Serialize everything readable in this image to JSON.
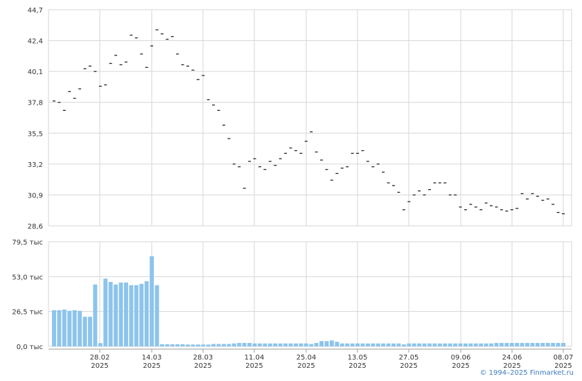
{
  "chart_data": [
    {
      "type": "scatter",
      "marker": "dash",
      "title": "",
      "xlabel": "",
      "ylabel": "",
      "ylim": [
        28.6,
        44.7
      ],
      "y_ticks": [
        "44,7",
        "42,4",
        "40,1",
        "37,8",
        "35,5",
        "33,2",
        "30,9",
        "28,6"
      ],
      "grid": true,
      "values": [
        37.9,
        37.8,
        37.2,
        38.6,
        38.1,
        38.8,
        40.3,
        40.5,
        40.1,
        39.0,
        39.1,
        40.7,
        41.3,
        40.6,
        40.8,
        42.8,
        42.6,
        41.4,
        40.4,
        42.0,
        43.2,
        42.9,
        42.5,
        42.7,
        41.4,
        40.6,
        40.5,
        40.2,
        39.5,
        39.8,
        38.0,
        37.6,
        37.2,
        36.1,
        35.1,
        33.2,
        33.0,
        31.4,
        33.4,
        33.6,
        33.0,
        32.8,
        33.4,
        33.1,
        33.6,
        34.0,
        34.4,
        34.2,
        34.0,
        34.9,
        35.6,
        34.1,
        33.5,
        32.8,
        32.0,
        32.5,
        32.9,
        33.0,
        34.0,
        34.0,
        34.2,
        33.4,
        33.0,
        33.2,
        32.6,
        31.8,
        31.6,
        31.1,
        29.8,
        30.4,
        30.9,
        31.2,
        30.9,
        31.3,
        31.8,
        31.8,
        31.8,
        30.9,
        30.9,
        30.0,
        29.8,
        30.2,
        30.0,
        29.8,
        30.3,
        30.1,
        30.0,
        29.8,
        29.7,
        29.8,
        29.9,
        31.0,
        30.6,
        31.0,
        30.8,
        30.5,
        30.6,
        30.2,
        29.6,
        29.5
      ]
    },
    {
      "type": "bar",
      "title": "",
      "xlabel": "",
      "ylabel": "",
      "ylim": [
        0,
        79.5
      ],
      "y_ticks": [
        "79,5 тыс",
        "53,0 тыс",
        "26,5 тыс",
        "0,0 тыс"
      ],
      "unit": "тыс",
      "color": "#8cc4ec",
      "grid": true,
      "values": [
        27.5,
        27.5,
        28.0,
        27.0,
        27.5,
        27.0,
        22.5,
        22.5,
        47.0,
        2.5,
        51.5,
        49.0,
        47.0,
        48.5,
        48.5,
        46.5,
        46.5,
        47.5,
        49.5,
        68.5,
        46.5,
        1.6,
        1.6,
        1.6,
        1.6,
        1.6,
        1.4,
        1.4,
        1.4,
        1.4,
        1.4,
        1.8,
        1.8,
        1.8,
        1.8,
        2.2,
        2.6,
        2.6,
        2.6,
        2.2,
        2.2,
        2.2,
        2.2,
        2.2,
        2.2,
        2.2,
        2.2,
        2.2,
        2.2,
        2.2,
        1.8,
        2.6,
        4.0,
        4.0,
        4.5,
        3.5,
        2.2,
        2.2,
        2.2,
        2.2,
        2.2,
        2.2,
        2.2,
        2.2,
        2.2,
        2.2,
        2.2,
        2.2,
        1.5,
        2.2,
        2.2,
        2.2,
        2.2,
        2.2,
        2.2,
        2.2,
        2.2,
        2.2,
        2.2,
        2.2,
        2.2,
        2.2,
        2.2,
        2.2,
        2.2,
        2.2,
        2.6,
        2.6,
        2.6,
        2.6,
        2.6,
        2.6,
        2.6,
        2.6,
        2.6,
        2.6,
        2.6,
        2.6,
        2.6,
        2.6
      ]
    }
  ],
  "x_axis": {
    "ticks": [
      {
        "date": "28.02",
        "year": "2025"
      },
      {
        "date": "14.03",
        "year": "2025"
      },
      {
        "date": "28.03",
        "year": "2025"
      },
      {
        "date": "11.04",
        "year": "2025"
      },
      {
        "date": "25.04",
        "year": "2025"
      },
      {
        "date": "13.05",
        "year": "2025"
      },
      {
        "date": "27.05",
        "year": "2025"
      },
      {
        "date": "09.06",
        "year": "2025"
      },
      {
        "date": "24.06",
        "year": "2025"
      },
      {
        "date": "08.07",
        "year": "2025"
      }
    ]
  },
  "footer": {
    "copyright": "© 1994–2025 Finmarket.ru"
  }
}
